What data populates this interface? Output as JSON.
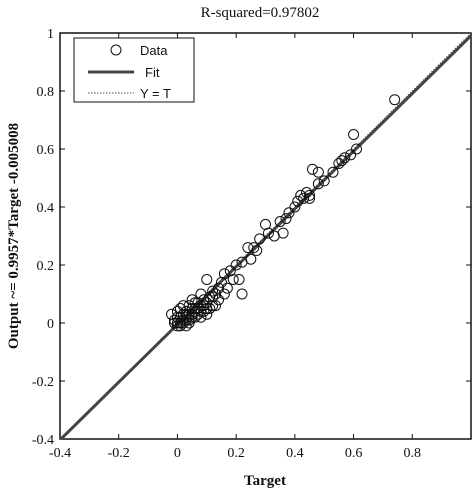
{
  "chart_data": {
    "type": "scatter",
    "title": "R-squared=0.97802",
    "xlabel": "Target",
    "ylabel": "Output ~= 0.9957*Target -0.005008",
    "xlim": [
      -0.4,
      1.0
    ],
    "ylim": [
      -0.4,
      1.0
    ],
    "xticks": [
      -0.4,
      -0.2,
      0,
      0.2,
      0.4,
      0.6,
      0.8
    ],
    "xtick_labels": [
      "-0.4",
      "-0.2",
      "0",
      "0.2",
      "0.4",
      "0.6",
      "0.8"
    ],
    "yticks": [
      -0.4,
      -0.2,
      0,
      0.2,
      0.4,
      0.6,
      0.8,
      1.0
    ],
    "ytick_labels": [
      "-0.4",
      "-0.2",
      "0",
      "0.2",
      "0.4",
      "0.6",
      "0.8",
      "1"
    ],
    "grid": false,
    "legend": {
      "placement": "top-left",
      "entries": [
        "Data",
        "Fit",
        "Y = T"
      ]
    },
    "fit": {
      "slope": 0.9957,
      "intercept": -0.005008
    },
    "series": [
      {
        "name": "Data",
        "marker": "circle-open",
        "points": [
          [
            0.74,
            0.77
          ],
          [
            0.6,
            0.65
          ],
          [
            0.61,
            0.6
          ],
          [
            0.59,
            0.58
          ],
          [
            0.57,
            0.57
          ],
          [
            0.56,
            0.56
          ],
          [
            0.55,
            0.55
          ],
          [
            0.53,
            0.52
          ],
          [
            0.5,
            0.49
          ],
          [
            0.48,
            0.52
          ],
          [
            0.46,
            0.53
          ],
          [
            0.44,
            0.45
          ],
          [
            0.45,
            0.43
          ],
          [
            0.43,
            0.43
          ],
          [
            0.41,
            0.42
          ],
          [
            0.38,
            0.38
          ],
          [
            0.4,
            0.4
          ],
          [
            0.45,
            0.44
          ],
          [
            0.48,
            0.48
          ],
          [
            0.3,
            0.34
          ],
          [
            0.28,
            0.29
          ],
          [
            0.31,
            0.31
          ],
          [
            0.33,
            0.3
          ],
          [
            0.26,
            0.26
          ],
          [
            0.24,
            0.26
          ],
          [
            0.22,
            0.21
          ],
          [
            0.2,
            0.2
          ],
          [
            0.19,
            0.15
          ],
          [
            0.21,
            0.15
          ],
          [
            0.18,
            0.18
          ],
          [
            0.16,
            0.17
          ],
          [
            0.15,
            0.14
          ],
          [
            0.14,
            0.12
          ],
          [
            0.13,
            0.1
          ],
          [
            0.12,
            0.11
          ],
          [
            0.1,
            0.15
          ],
          [
            0.11,
            0.09
          ],
          [
            0.12,
            0.06
          ],
          [
            0.1,
            0.07
          ],
          [
            0.09,
            0.08
          ],
          [
            0.08,
            0.1
          ],
          [
            0.08,
            0.06
          ],
          [
            0.07,
            0.05
          ],
          [
            0.06,
            0.07
          ],
          [
            0.06,
            0.04
          ],
          [
            0.05,
            0.05
          ],
          [
            0.05,
            0.02
          ],
          [
            0.04,
            0.03
          ],
          [
            0.04,
            0.06
          ],
          [
            0.03,
            0.04
          ],
          [
            0.03,
            0.01
          ],
          [
            0.02,
            0.03
          ],
          [
            0.02,
            0.0
          ],
          [
            0.01,
            0.02
          ],
          [
            0.01,
            -0.01
          ],
          [
            0.0,
            0.0
          ],
          [
            0.0,
            0.02
          ],
          [
            -0.01,
            0.01
          ],
          [
            -0.02,
            0.03
          ],
          [
            0.01,
            0.05
          ],
          [
            0.02,
            0.06
          ],
          [
            0.03,
            -0.01
          ],
          [
            0.04,
            0.01
          ],
          [
            0.05,
            0.08
          ],
          [
            0.06,
            0.02
          ],
          [
            0.07,
            0.03
          ],
          [
            0.08,
            0.02
          ],
          [
            0.09,
            0.04
          ],
          [
            0.1,
            0.03
          ],
          [
            0.11,
            0.05
          ],
          [
            0.13,
            0.06
          ],
          [
            0.14,
            0.08
          ],
          [
            0.16,
            0.1
          ],
          [
            0.17,
            0.12
          ],
          [
            0.22,
            0.1
          ],
          [
            0.25,
            0.22
          ],
          [
            0.27,
            0.25
          ],
          [
            0.35,
            0.35
          ],
          [
            0.36,
            0.31
          ],
          [
            0.37,
            0.36
          ],
          [
            0.42,
            0.44
          ],
          [
            0.0,
            -0.01
          ],
          [
            0.01,
            0.0
          ],
          [
            0.02,
            0.01
          ],
          [
            0.03,
            0.02
          ],
          [
            0.04,
            0.0
          ],
          [
            0.05,
            0.03
          ],
          [
            0.06,
            0.05
          ],
          [
            0.0,
            0.04
          ],
          [
            -0.01,
            0.0
          ],
          [
            0.07,
            0.07
          ],
          [
            0.08,
            0.04
          ],
          [
            0.09,
            0.06
          ],
          [
            0.1,
            0.05
          ],
          [
            0.12,
            0.09
          ]
        ]
      }
    ]
  }
}
